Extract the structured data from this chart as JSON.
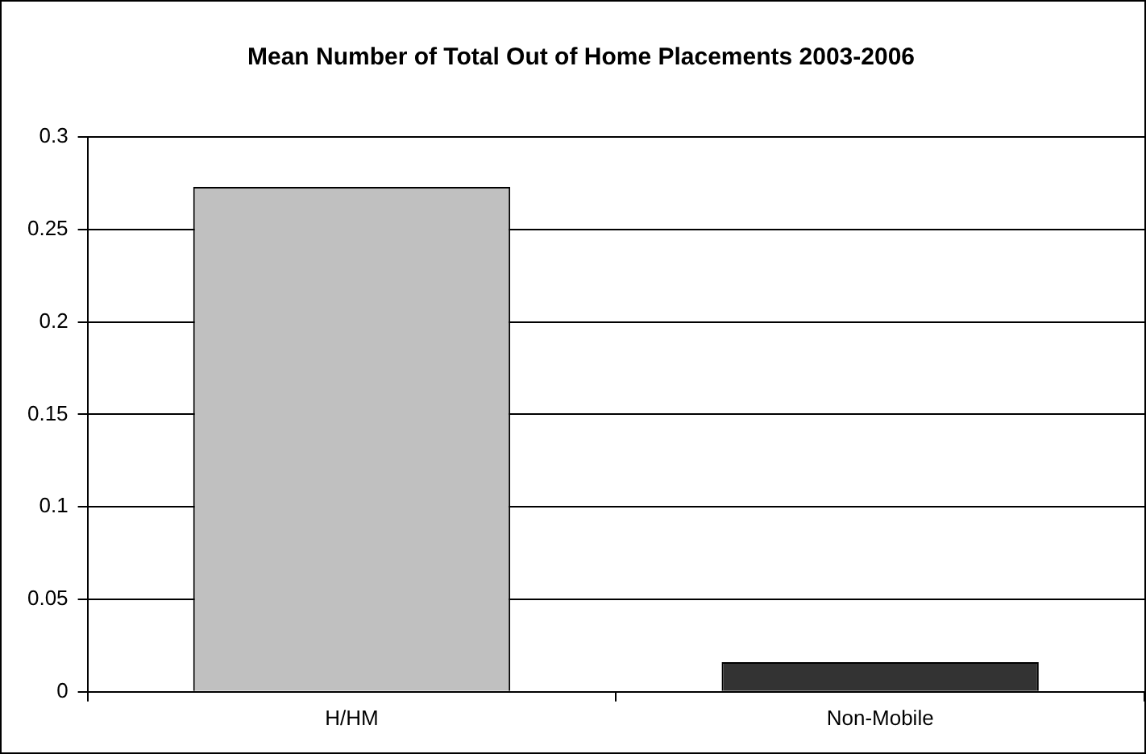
{
  "chart_data": {
    "type": "bar",
    "title": "Mean Number of Total Out of Home Placements 2003-2006",
    "categories": [
      "H/HM",
      "Non-Mobile"
    ],
    "values": [
      0.273,
      0.016
    ],
    "colors": [
      "#c0c0c0",
      "#333333"
    ],
    "ylim": [
      0,
      0.3
    ],
    "yticks": [
      0,
      0.05,
      0.1,
      0.15,
      0.2,
      0.25,
      0.3
    ],
    "grid": "y"
  }
}
